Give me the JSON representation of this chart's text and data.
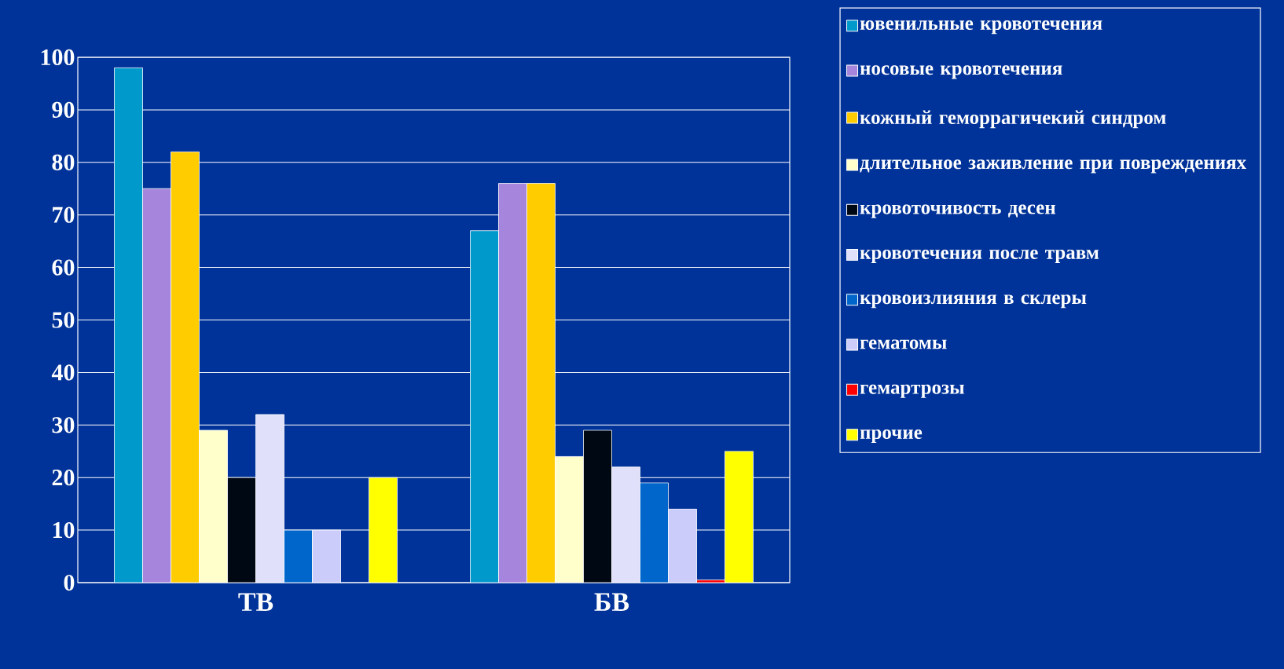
{
  "chart_data": {
    "type": "bar",
    "categories": [
      "ТВ",
      "БВ"
    ],
    "series": [
      {
        "name": "ювенильные кровотечения",
        "color": "#0099cc",
        "values": [
          98,
          67
        ]
      },
      {
        "name": "носовые кровотечения",
        "color": "#a686dc",
        "values": [
          75,
          76
        ]
      },
      {
        "name": "кожный геморрагичекий синдром",
        "color": "#ffcc00",
        "values": [
          82,
          76
        ]
      },
      {
        "name": "длительное заживление при повреждениях",
        "color": "#ffffcc",
        "values": [
          29,
          24
        ]
      },
      {
        "name": "кровоточивость десен",
        "color": "#000814",
        "values": [
          20,
          29
        ]
      },
      {
        "name": "кровотечения после травм",
        "color": "#e0e0fa",
        "values": [
          32,
          22
        ]
      },
      {
        "name": "кровоизлияния в склеры",
        "color": "#0066cc",
        "values": [
          10,
          19
        ]
      },
      {
        "name": "гематомы",
        "color": "#ccccfa",
        "values": [
          10,
          14
        ]
      },
      {
        "name": "гемартрозы",
        "color": "#ff0000",
        "values": [
          null,
          0.5
        ]
      },
      {
        "name": "прочие",
        "color": "#ffff00",
        "values": [
          20,
          25
        ]
      }
    ],
    "ylim": [
      0,
      100
    ],
    "yticks": [
      0,
      10,
      20,
      30,
      40,
      50,
      60,
      70,
      80,
      90,
      100
    ],
    "grid": "y",
    "legend": "right"
  }
}
